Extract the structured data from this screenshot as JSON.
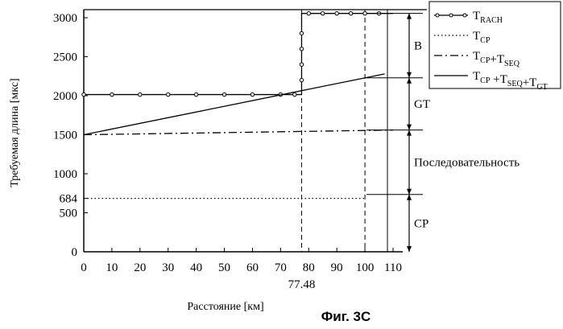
{
  "chart_data": {
    "type": "line",
    "title": "",
    "xlabel": "Расстояние [км]",
    "ylabel": "Требуемая длина [мкс]",
    "xlim": [
      0,
      110
    ],
    "ylim": [
      0,
      3000
    ],
    "x_ticks": [
      "0",
      "10",
      "20",
      "30",
      "40",
      "50",
      "60",
      "70",
      "80",
      "90",
      "100",
      "110"
    ],
    "y_ticks": [
      "0",
      "500",
      "684",
      "1000",
      "1500",
      "2000",
      "2500",
      "3000"
    ],
    "x_extra_tick": "77.48",
    "series": [
      {
        "name": "T_RACH",
        "legend_base": "T",
        "legend_sub": "RACH",
        "style": "solid-circle-markers",
        "x": [
          0,
          77.48,
          77.48,
          110
        ],
        "y": [
          2015,
          2015,
          3055,
          3055
        ],
        "markers_x": [
          0,
          10,
          20,
          30,
          40,
          50,
          60,
          70,
          75,
          80,
          85,
          90,
          95,
          100,
          105
        ],
        "markers_jump_y": [
          2200,
          2400,
          2600,
          2800
        ]
      },
      {
        "name": "T_CP",
        "legend_base": "T",
        "legend_sub": "CP",
        "style": "dotted",
        "x": [
          0,
          100
        ],
        "y": [
          684,
          684
        ]
      },
      {
        "name": "T_CP+T_SEQ",
        "legend_parts": [
          [
            "T",
            "CP"
          ],
          [
            "+T",
            "SEQ"
          ]
        ],
        "style": "dash-dot",
        "x": [
          0,
          110
        ],
        "y": [
          1500,
          1560
        ]
      },
      {
        "name": "T_CP+T_SEQ+T_GT",
        "legend_parts": [
          [
            "T",
            "CP"
          ],
          [
            " +T",
            "SEQ"
          ],
          [
            "+T",
            "GT"
          ]
        ],
        "style": "solid",
        "x": [
          0,
          107
        ],
        "y": [
          1500,
          2280
        ]
      }
    ],
    "vertical_lines": [
      {
        "x": 77.48,
        "style": "dashed"
      },
      {
        "x": 100,
        "style": "dashed"
      },
      {
        "x": 108,
        "style": "solid"
      }
    ],
    "annotations": [
      {
        "label": "B",
        "from": 2230,
        "to": 3055
      },
      {
        "label": "GT",
        "from": 1560,
        "to": 2230
      },
      {
        "label": "Последовательность",
        "from": 735,
        "to": 1560
      },
      {
        "label": "CP",
        "from": 0,
        "to": 735
      }
    ],
    "legend_position": "top-right",
    "grid": false
  },
  "figure_caption": "Фиг. 3С"
}
